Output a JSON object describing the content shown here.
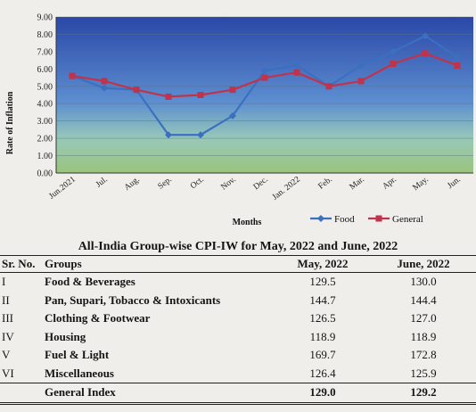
{
  "chart_data": {
    "type": "line",
    "ylabel": "Rate of Inflation",
    "xlabel": "Months",
    "ylim": [
      0,
      9
    ],
    "yticks": [
      "0.00",
      "1.00",
      "2.00",
      "3.00",
      "4.00",
      "5.00",
      "6.00",
      "7.00",
      "8.00",
      "9.00"
    ],
    "categories": [
      "Jun.2021",
      "Jul.",
      "Aug.",
      "Sep.",
      "Oct.",
      "Nov.",
      "Dec.",
      "Jan. 2022",
      "Feb.",
      "Mar.",
      "Apr.",
      "May.",
      "Jun."
    ],
    "series": [
      {
        "name": "Food",
        "color": "#3b6fc0",
        "marker": "diamond",
        "values": [
          5.6,
          4.9,
          4.8,
          2.2,
          2.2,
          3.3,
          5.9,
          6.2,
          5.0,
          6.2,
          7.0,
          7.9,
          6.7
        ]
      },
      {
        "name": "General",
        "color": "#c0334a",
        "marker": "square",
        "values": [
          5.6,
          5.3,
          4.8,
          4.4,
          4.5,
          4.8,
          5.5,
          5.8,
          5.0,
          5.3,
          6.3,
          6.9,
          6.2
        ]
      }
    ],
    "legend_position": "bottom-right"
  },
  "table": {
    "title": "All-India Group-wise CPI-IW for May, 2022 and June, 2022",
    "headers": [
      "Sr. No.",
      "Groups",
      "May, 2022",
      "June, 2022"
    ],
    "rows": [
      [
        "I",
        "Food & Beverages",
        "129.5",
        "130.0"
      ],
      [
        "II",
        "Pan, Supari, Tobacco & Intoxicants",
        "144.7",
        "144.4"
      ],
      [
        "III",
        "Clothing & Footwear",
        "126.5",
        "127.0"
      ],
      [
        "IV",
        "Housing",
        "118.9",
        "118.9"
      ],
      [
        "V",
        "Fuel & Light",
        "169.7",
        "172.8"
      ],
      [
        "VI",
        "Miscellaneous",
        "126.4",
        "125.9"
      ]
    ],
    "total": [
      "",
      "General Index",
      "129.0",
      "129.2"
    ]
  }
}
